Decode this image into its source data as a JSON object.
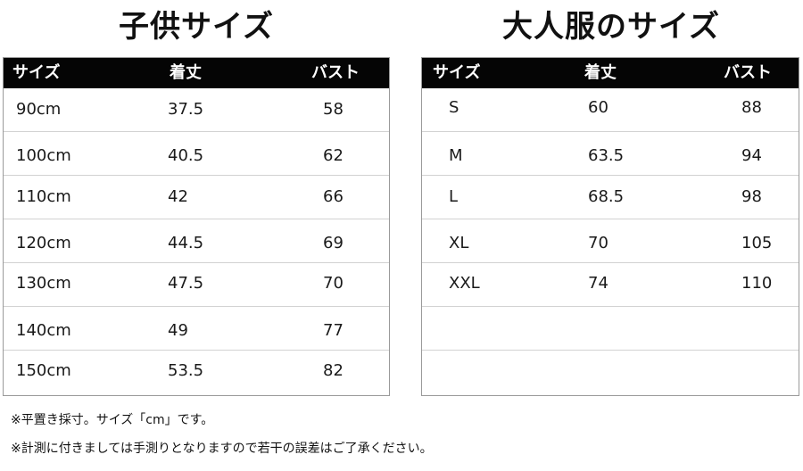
{
  "kids": {
    "title": "子供サイズ",
    "headers": [
      "サイズ",
      "着丈",
      "バスト"
    ],
    "rows": [
      [
        "90cm",
        "37.5",
        "58"
      ],
      [
        "100cm",
        "40.5",
        "62"
      ],
      [
        "110cm",
        "42",
        "66"
      ],
      [
        "120cm",
        "44.5",
        "69"
      ],
      [
        "130cm",
        "47.5",
        "70"
      ],
      [
        "140cm",
        "49",
        "77"
      ],
      [
        "150cm",
        "53.5",
        "82"
      ]
    ]
  },
  "adult": {
    "title": "大人服のサイズ",
    "headers": [
      "サイズ",
      "着丈",
      "バスト"
    ],
    "rows": [
      [
        "S",
        "60",
        "88"
      ],
      [
        "M",
        "63.5",
        "94"
      ],
      [
        "L",
        "68.5",
        "98"
      ],
      [
        "XL",
        "70",
        "105"
      ],
      [
        "XXL",
        "74",
        "110"
      ],
      [
        "",
        "",
        ""
      ],
      [
        "",
        "",
        ""
      ]
    ]
  },
  "notes": [
    "※平置き採寸。サイズ「cm」です。",
    "※計測に付きましては手測りとなりますので若干の誤差はご了承ください。"
  ]
}
